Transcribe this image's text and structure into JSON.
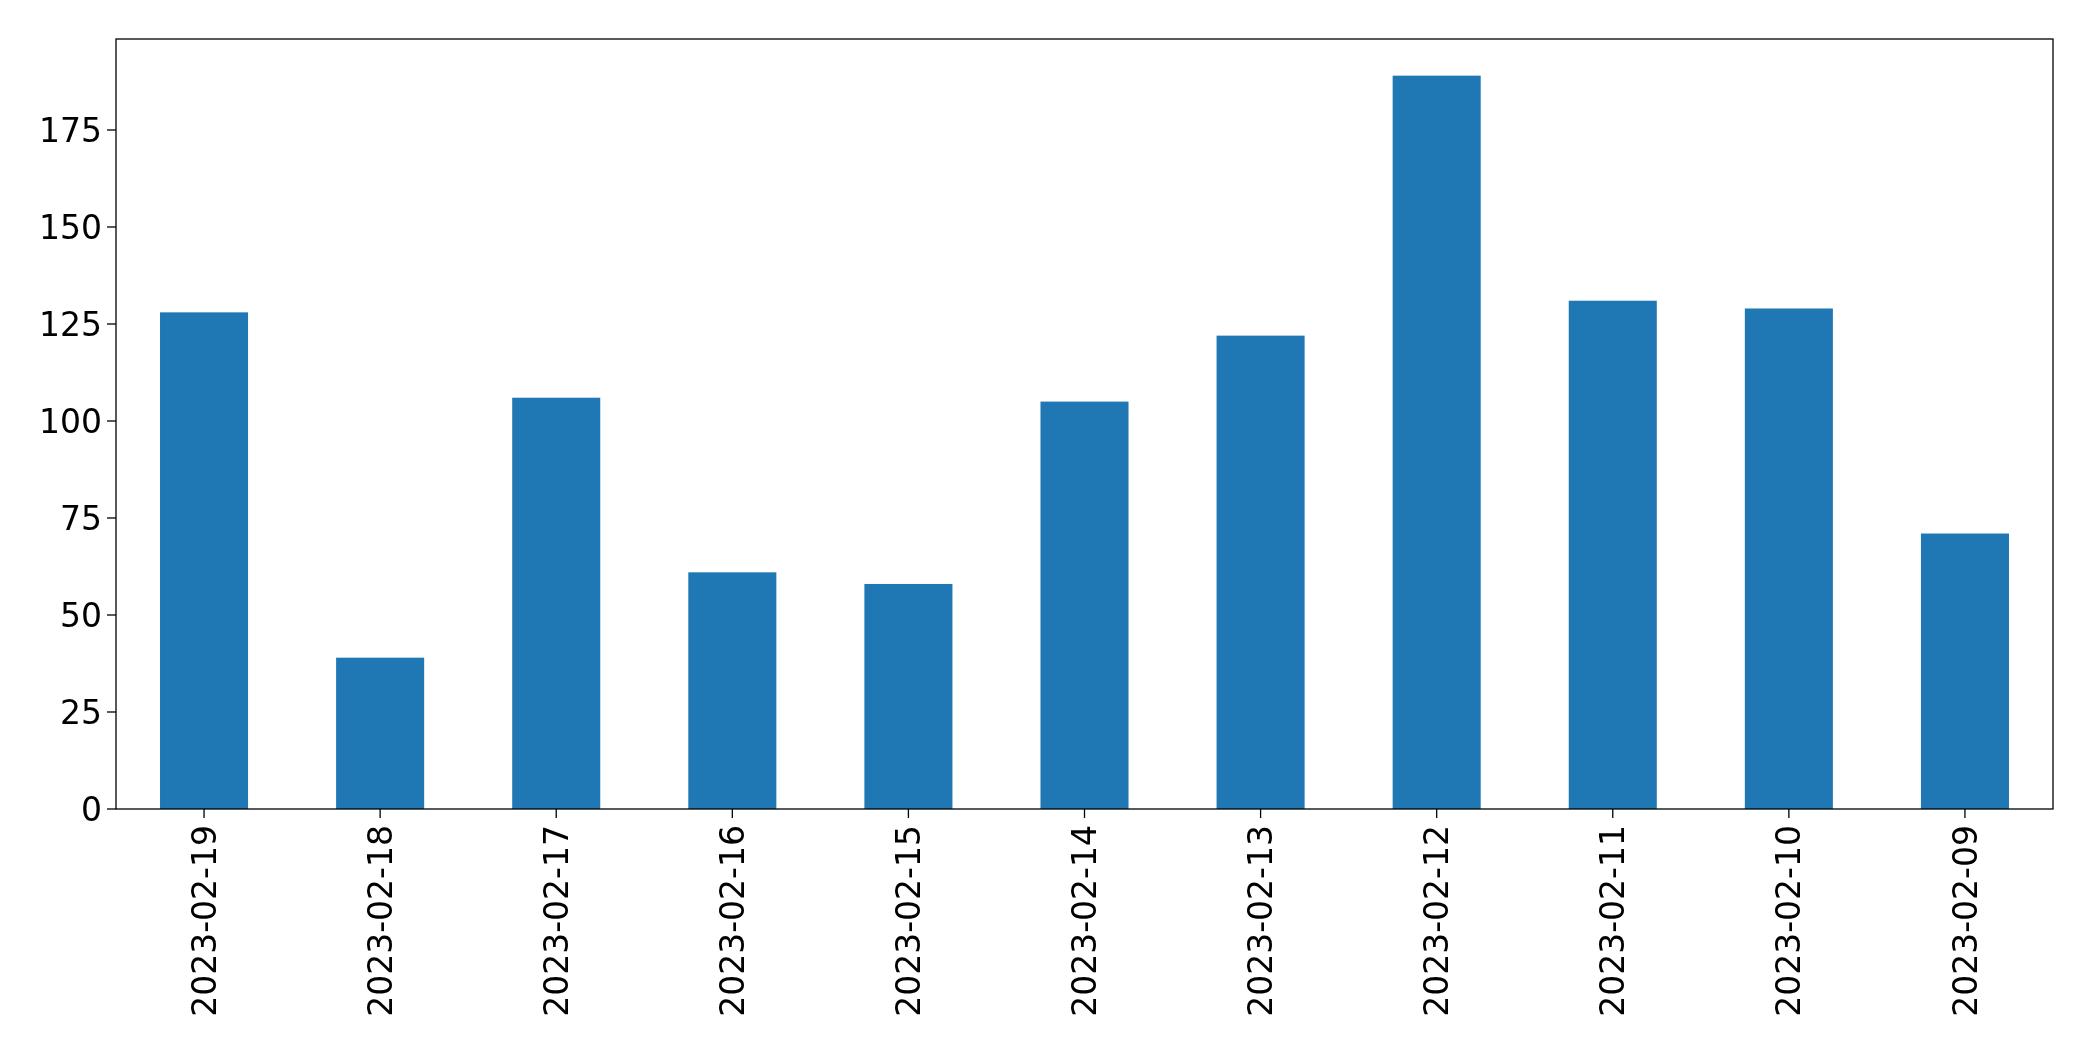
{
  "chart_data": {
    "type": "bar",
    "categories": [
      "2023-02-19",
      "2023-02-18",
      "2023-02-17",
      "2023-02-16",
      "2023-02-15",
      "2023-02-14",
      "2023-02-13",
      "2023-02-12",
      "2023-02-11",
      "2023-02-10",
      "2023-02-09"
    ],
    "values": [
      128,
      39,
      106,
      61,
      58,
      105,
      122,
      189,
      131,
      129,
      71
    ],
    "color": "#1f77b4",
    "ylim": [
      0,
      198.45
    ],
    "yticks": [
      0,
      25,
      50,
      75,
      100,
      125,
      150,
      175
    ],
    "grid": false
  }
}
